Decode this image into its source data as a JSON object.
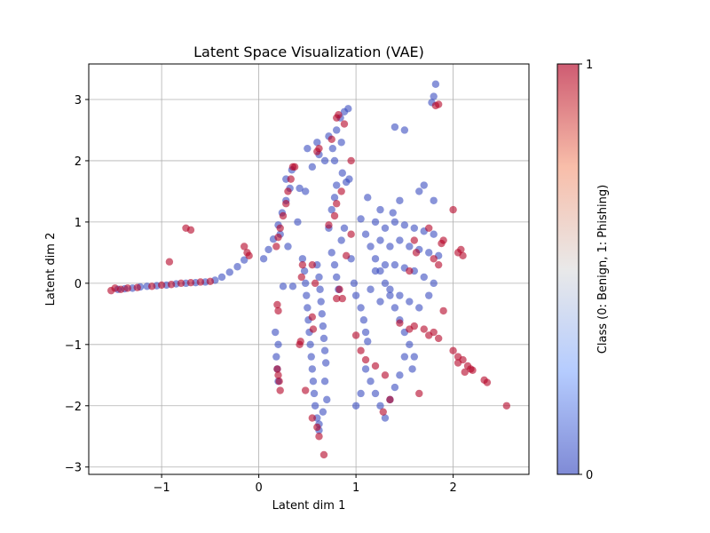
{
  "chart_data": {
    "type": "scatter",
    "title": "Latent Space Visualization (VAE)",
    "xlabel": "Latent dim 1",
    "ylabel": "Latent dim 2",
    "xlim": [
      -1.75,
      2.78
    ],
    "ylim": [
      -3.12,
      3.58
    ],
    "xticks": [
      -1,
      0,
      1,
      2
    ],
    "xtick_labels": [
      "−1",
      "0",
      "1",
      "2"
    ],
    "yticks": [
      -3,
      -2,
      -1,
      0,
      1,
      2,
      3
    ],
    "ytick_labels": [
      "−3",
      "−2",
      "−1",
      "0",
      "1",
      "2",
      "3"
    ],
    "grid": true,
    "colormap": "coolwarm",
    "colors": {
      "class_0": "#3b4cc0",
      "class_1": "#b40426"
    },
    "colorbar": {
      "label": "Class (0: Benign, 1: Phishing)",
      "ticks": [
        0,
        1
      ],
      "tick_labels": [
        "0",
        "1"
      ]
    },
    "series": [
      {
        "class": 0,
        "points": [
          [
            -1.45,
            -0.1
          ],
          [
            -1.38,
            -0.09
          ],
          [
            -1.3,
            -0.08
          ],
          [
            -1.22,
            -0.06
          ],
          [
            -1.15,
            -0.05
          ],
          [
            -1.05,
            -0.04
          ],
          [
            -0.95,
            -0.03
          ],
          [
            -0.85,
            -0.01
          ],
          [
            -0.75,
            0.0
          ],
          [
            -0.65,
            0.01
          ],
          [
            -0.55,
            0.02
          ],
          [
            -0.45,
            0.05
          ],
          [
            -0.38,
            0.1
          ],
          [
            -0.3,
            0.18
          ],
          [
            -0.22,
            0.27
          ],
          [
            -0.15,
            0.38
          ],
          [
            0.05,
            0.4
          ],
          [
            0.1,
            0.55
          ],
          [
            0.15,
            0.72
          ],
          [
            0.2,
            0.95
          ],
          [
            0.24,
            1.15
          ],
          [
            0.28,
            1.35
          ],
          [
            0.32,
            1.55
          ],
          [
            0.42,
            1.55
          ],
          [
            0.4,
            1.0
          ],
          [
            0.2,
            -1.0
          ],
          [
            0.18,
            -1.2
          ],
          [
            0.19,
            -1.4
          ],
          [
            0.2,
            -1.6
          ],
          [
            0.17,
            -0.8
          ],
          [
            0.25,
            -0.05
          ],
          [
            0.45,
            0.4
          ],
          [
            0.47,
            0.2
          ],
          [
            0.48,
            0.0
          ],
          [
            0.49,
            -0.2
          ],
          [
            0.5,
            -0.4
          ],
          [
            0.51,
            -0.6
          ],
          [
            0.52,
            -0.8
          ],
          [
            0.53,
            -1.0
          ],
          [
            0.54,
            -1.2
          ],
          [
            0.55,
            -1.4
          ],
          [
            0.56,
            -1.6
          ],
          [
            0.57,
            -1.8
          ],
          [
            0.58,
            -2.0
          ],
          [
            0.6,
            -2.2
          ],
          [
            0.62,
            -2.4
          ],
          [
            0.6,
            0.3
          ],
          [
            0.62,
            0.1
          ],
          [
            0.63,
            -0.1
          ],
          [
            0.64,
            -0.3
          ],
          [
            0.65,
            -0.5
          ],
          [
            0.66,
            -0.7
          ],
          [
            0.67,
            -0.9
          ],
          [
            0.68,
            -1.1
          ],
          [
            0.69,
            -1.3
          ],
          [
            0.68,
            -1.6
          ],
          [
            0.7,
            -1.9
          ],
          [
            0.66,
            -2.1
          ],
          [
            0.62,
            -2.3
          ],
          [
            0.72,
            0.9
          ],
          [
            0.75,
            1.2
          ],
          [
            0.78,
            1.4
          ],
          [
            0.8,
            1.6
          ],
          [
            0.86,
            1.8
          ],
          [
            0.6,
            2.3
          ],
          [
            0.62,
            2.1
          ],
          [
            0.68,
            2.0
          ],
          [
            0.72,
            2.4
          ],
          [
            0.76,
            2.2
          ],
          [
            0.8,
            2.5
          ],
          [
            0.84,
            2.7
          ],
          [
            0.88,
            2.8
          ],
          [
            0.92,
            2.85
          ],
          [
            0.78,
            2.0
          ],
          [
            0.85,
            2.3
          ],
          [
            0.55,
            1.9
          ],
          [
            0.48,
            1.5
          ],
          [
            0.75,
            0.5
          ],
          [
            0.78,
            0.3
          ],
          [
            0.8,
            0.1
          ],
          [
            0.82,
            -0.1
          ],
          [
            0.85,
            0.7
          ],
          [
            0.88,
            0.9
          ],
          [
            0.95,
            0.4
          ],
          [
            0.98,
            0.0
          ],
          [
            1.0,
            -0.2
          ],
          [
            1.05,
            -0.4
          ],
          [
            1.08,
            -0.6
          ],
          [
            1.1,
            -0.8
          ],
          [
            1.12,
            -0.95
          ],
          [
            1.05,
            1.05
          ],
          [
            1.1,
            0.8
          ],
          [
            1.15,
            0.6
          ],
          [
            1.2,
            0.4
          ],
          [
            1.25,
            0.2
          ],
          [
            1.3,
            0.0
          ],
          [
            1.35,
            -0.2
          ],
          [
            1.4,
            -0.4
          ],
          [
            1.45,
            -0.6
          ],
          [
            1.5,
            -0.8
          ],
          [
            1.55,
            -1.0
          ],
          [
            1.6,
            -1.2
          ],
          [
            1.2,
            1.0
          ],
          [
            1.3,
            0.9
          ],
          [
            1.4,
            1.0
          ],
          [
            1.5,
            0.95
          ],
          [
            1.6,
            0.9
          ],
          [
            1.7,
            0.85
          ],
          [
            1.8,
            0.8
          ],
          [
            1.25,
            0.7
          ],
          [
            1.35,
            0.6
          ],
          [
            1.45,
            0.7
          ],
          [
            1.55,
            0.6
          ],
          [
            1.65,
            0.55
          ],
          [
            1.75,
            0.5
          ],
          [
            1.85,
            0.45
          ],
          [
            1.2,
            0.2
          ],
          [
            1.3,
            0.3
          ],
          [
            1.4,
            0.3
          ],
          [
            1.5,
            0.25
          ],
          [
            1.6,
            0.2
          ],
          [
            1.7,
            0.1
          ],
          [
            1.8,
            0.0
          ],
          [
            1.15,
            -0.1
          ],
          [
            1.25,
            -0.3
          ],
          [
            1.35,
            -0.1
          ],
          [
            1.45,
            -0.2
          ],
          [
            1.55,
            -0.3
          ],
          [
            1.65,
            -0.4
          ],
          [
            1.75,
            -0.2
          ],
          [
            1.1,
            -1.4
          ],
          [
            1.15,
            -1.6
          ],
          [
            1.2,
            -1.8
          ],
          [
            1.25,
            -2.0
          ],
          [
            1.3,
            -2.2
          ],
          [
            1.35,
            -1.9
          ],
          [
            1.4,
            -1.7
          ],
          [
            1.45,
            -1.5
          ],
          [
            1.05,
            -1.8
          ],
          [
            1.0,
            -2.0
          ],
          [
            1.5,
            -1.2
          ],
          [
            1.58,
            -1.4
          ],
          [
            1.45,
            1.35
          ],
          [
            1.65,
            1.5
          ],
          [
            1.7,
            1.6
          ],
          [
            1.8,
            1.35
          ],
          [
            1.78,
            2.95
          ],
          [
            1.8,
            3.05
          ],
          [
            1.82,
            3.25
          ],
          [
            1.4,
            2.55
          ],
          [
            1.5,
            2.5
          ],
          [
            1.12,
            1.4
          ],
          [
            1.25,
            1.2
          ],
          [
            1.38,
            1.15
          ],
          [
            0.35,
            -0.05
          ],
          [
            0.3,
            0.6
          ],
          [
            0.22,
            0.8
          ],
          [
            0.28,
            1.7
          ],
          [
            0.34,
            1.85
          ],
          [
            0.5,
            2.2
          ],
          [
            0.9,
            1.65
          ],
          [
            0.93,
            1.7
          ]
        ]
      },
      {
        "class": 1,
        "points": [
          [
            -1.52,
            -0.12
          ],
          [
            -1.48,
            -0.08
          ],
          [
            -1.42,
            -0.1
          ],
          [
            -1.35,
            -0.08
          ],
          [
            -1.25,
            -0.07
          ],
          [
            -1.1,
            -0.05
          ],
          [
            -1.0,
            -0.03
          ],
          [
            -0.9,
            -0.02
          ],
          [
            -0.8,
            0.0
          ],
          [
            -0.7,
            0.01
          ],
          [
            -0.6,
            0.02
          ],
          [
            -0.5,
            0.03
          ],
          [
            -0.12,
            0.5
          ],
          [
            -0.1,
            0.45
          ],
          [
            -0.15,
            0.6
          ],
          [
            -0.92,
            0.35
          ],
          [
            -0.75,
            0.9
          ],
          [
            -0.7,
            0.87
          ],
          [
            0.18,
            0.6
          ],
          [
            0.2,
            0.75
          ],
          [
            0.22,
            0.9
          ],
          [
            0.25,
            1.1
          ],
          [
            0.28,
            1.3
          ],
          [
            0.3,
            1.5
          ],
          [
            0.33,
            1.7
          ],
          [
            0.35,
            1.9
          ],
          [
            0.37,
            1.9
          ],
          [
            0.19,
            -0.35
          ],
          [
            0.2,
            -0.45
          ],
          [
            0.19,
            -1.4
          ],
          [
            0.21,
            -1.6
          ],
          [
            0.22,
            -1.75
          ],
          [
            0.2,
            -1.5
          ],
          [
            0.45,
            0.3
          ],
          [
            0.44,
            0.1
          ],
          [
            0.43,
            -0.95
          ],
          [
            0.42,
            -1.0
          ],
          [
            0.48,
            -1.75
          ],
          [
            0.55,
            -2.2
          ],
          [
            0.6,
            -2.35
          ],
          [
            0.62,
            -2.5
          ],
          [
            0.67,
            -2.8
          ],
          [
            0.55,
            0.3
          ],
          [
            0.58,
            0.0
          ],
          [
            0.55,
            -0.55
          ],
          [
            0.56,
            -0.75
          ],
          [
            0.8,
            -0.25
          ],
          [
            0.83,
            -0.1
          ],
          [
            0.86,
            -0.25
          ],
          [
            0.72,
            0.95
          ],
          [
            0.78,
            1.1
          ],
          [
            0.8,
            1.3
          ],
          [
            0.85,
            1.5
          ],
          [
            0.6,
            2.15
          ],
          [
            0.62,
            2.2
          ],
          [
            0.8,
            2.7
          ],
          [
            0.82,
            2.75
          ],
          [
            0.88,
            2.6
          ],
          [
            0.75,
            2.35
          ],
          [
            0.95,
            2.0
          ],
          [
            0.9,
            0.45
          ],
          [
            0.95,
            0.8
          ],
          [
            1.0,
            -0.85
          ],
          [
            1.05,
            -1.1
          ],
          [
            1.1,
            -1.25
          ],
          [
            1.2,
            -1.35
          ],
          [
            1.3,
            -1.5
          ],
          [
            1.35,
            -1.9
          ],
          [
            1.28,
            -2.1
          ],
          [
            1.65,
            -1.8
          ],
          [
            1.45,
            -0.65
          ],
          [
            1.55,
            -0.75
          ],
          [
            1.6,
            -0.7
          ],
          [
            1.7,
            -0.75
          ],
          [
            1.75,
            -0.85
          ],
          [
            1.8,
            -0.8
          ],
          [
            1.85,
            -0.9
          ],
          [
            1.6,
            0.7
          ],
          [
            1.62,
            0.5
          ],
          [
            1.75,
            0.9
          ],
          [
            1.8,
            0.4
          ],
          [
            1.85,
            0.3
          ],
          [
            1.55,
            0.2
          ],
          [
            1.88,
            0.65
          ],
          [
            1.9,
            0.7
          ],
          [
            1.85,
            2.92
          ],
          [
            1.82,
            2.9
          ],
          [
            1.9,
            -0.45
          ],
          [
            2.0,
            1.2
          ],
          [
            2.05,
            0.5
          ],
          [
            2.08,
            0.55
          ],
          [
            2.1,
            0.45
          ],
          [
            2.0,
            -1.1
          ],
          [
            2.05,
            -1.2
          ],
          [
            2.1,
            -1.25
          ],
          [
            2.15,
            -1.35
          ],
          [
            2.18,
            -1.4
          ],
          [
            2.12,
            -1.45
          ],
          [
            2.05,
            -1.3
          ],
          [
            2.2,
            -1.42
          ],
          [
            2.32,
            -1.58
          ],
          [
            2.35,
            -1.62
          ],
          [
            2.55,
            -2.0
          ]
        ]
      }
    ]
  }
}
